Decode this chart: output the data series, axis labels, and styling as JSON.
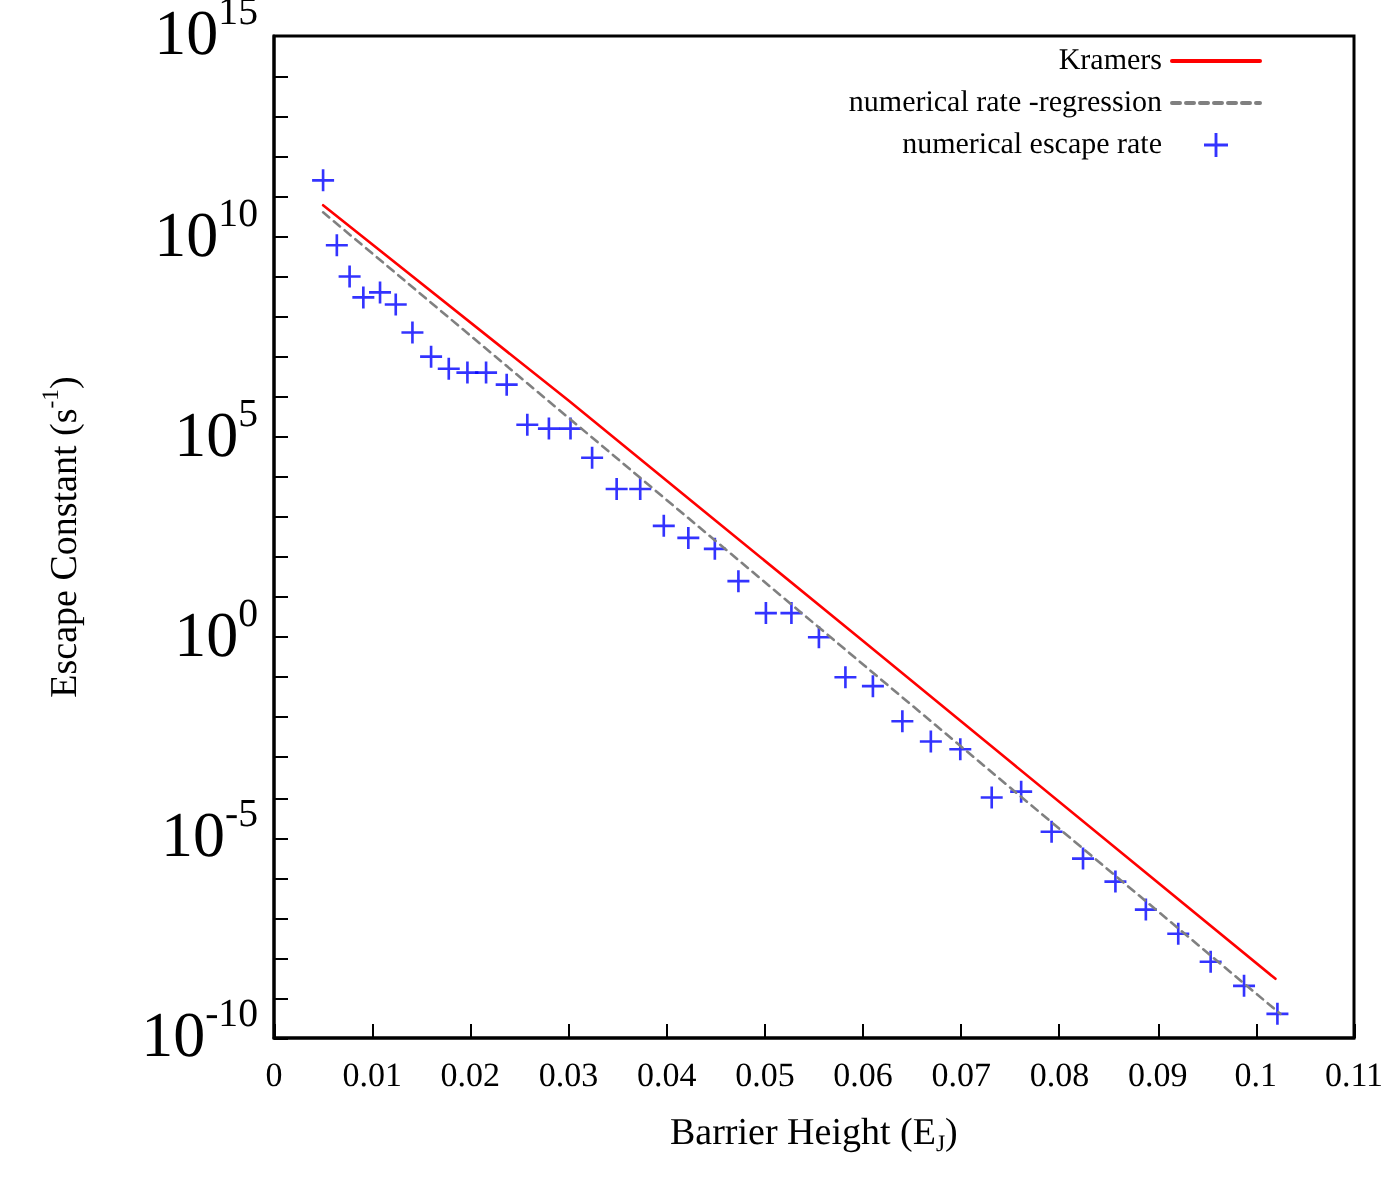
{
  "chart_data": {
    "type": "line",
    "xlabel": "Barrier Height (E$_{J}$)",
    "ylabel": "Escape Constant (s$^{-1}$)",
    "log": "y",
    "grid": false,
    "legend": "top right",
    "xlim": [
      0,
      0.11
    ],
    "xticks": [
      0,
      0.01,
      0.02,
      0.03,
      0.04,
      0.05,
      0.06,
      0.07,
      0.08,
      0.09,
      0.1,
      0.11
    ],
    "ylim": [
      1e-10,
      1000000000000000.0
    ],
    "yticks": [
      {
        "value": 1e-10,
        "label": "10$^{-10}$"
      },
      {
        "value": 1e-09,
        "label": null
      },
      {
        "value": 1e-08,
        "label": null
      },
      {
        "value": 1e-07,
        "label": null
      },
      {
        "value": 1e-06,
        "label": null
      },
      {
        "value": 1e-05,
        "label": "10$^{-5}$"
      },
      {
        "value": 0.0001,
        "label": null
      },
      {
        "value": 0.001,
        "label": null
      },
      {
        "value": 0.01,
        "label": null
      },
      {
        "value": 0.1,
        "label": null
      },
      {
        "value": 1,
        "label": "10$^{0}$"
      },
      {
        "value": 10.0,
        "label": null
      },
      {
        "value": 100.0,
        "label": null
      },
      {
        "value": 1000.0,
        "label": null
      },
      {
        "value": 10000.0,
        "label": null
      },
      {
        "value": 100000.0,
        "label": "10$^{5}$"
      },
      {
        "value": 1000000.0,
        "label": null
      },
      {
        "value": 10000000.0,
        "label": null
      },
      {
        "value": 100000000.0,
        "label": null
      },
      {
        "value": 1000000000.0,
        "label": null
      },
      {
        "value": 10000000000.0,
        "label": "10$^{10}$"
      },
      {
        "value": 100000000000.0,
        "label": null
      },
      {
        "value": 1000000000000.0,
        "label": null
      },
      {
        "value": 10000000000000.0,
        "label": null
      },
      {
        "value": 100000000000000.0,
        "label": null
      },
      {
        "value": 1000000000000000.0,
        "label": "10$^{15}$"
      }
    ],
    "series": [
      {
        "name": "Kramers",
        "color": "#ff0000",
        "line_style": "solid",
        "x": [
          0.005,
          0.03,
          0.06,
          0.102
        ],
        "values": [
          60000000000.0,
          800000.0,
          0.8,
          3e-09
        ]
      },
      {
        "name": "numerical rate -regression",
        "color": "#808080",
        "line_style": "dashed",
        "x": [
          0.005,
          0.1025
        ],
        "values": [
          40000000000.0,
          4e-10
        ]
      },
      {
        "name": "numerical escape rate",
        "type": "scatter",
        "color": "#0000ff",
        "marker": "cross",
        "x": [
          0.005,
          0.0064,
          0.0077,
          0.0091,
          0.0108,
          0.0124,
          0.0141,
          0.016,
          0.0178,
          0.0197,
          0.0216,
          0.0237,
          0.0258,
          0.028,
          0.0302,
          0.0324,
          0.0349,
          0.0373,
          0.0397,
          0.0422,
          0.0449,
          0.0473,
          0.0501,
          0.0527,
          0.0555,
          0.0582,
          0.061,
          0.064,
          0.0669,
          0.0699,
          0.0731,
          0.0761,
          0.0792,
          0.0824,
          0.0857,
          0.0888,
          0.0921,
          0.0954,
          0.0988,
          0.1022
        ],
        "values": [
          250000000000.0,
          6000000000.0,
          1000000000.0,
          300000000.0,
          400000000.0,
          200000000.0,
          40000000.0,
          10000000.0,
          5000000.0,
          4000000.0,
          4000000.0,
          2000000.0,
          200000.0,
          160000.0,
          160000.0,
          30000.0,
          5000.0,
          5000.0,
          600.0,
          300.0,
          160.0,
          25,
          4,
          4,
          1,
          0.1,
          0.06,
          0.008,
          0.0025,
          0.0016,
          0.0001,
          0.00014,
          1.4e-05,
          3e-06,
          8e-07,
          1.6e-07,
          4e-08,
          8e-09,
          2e-09,
          4e-10
        ]
      }
    ]
  }
}
